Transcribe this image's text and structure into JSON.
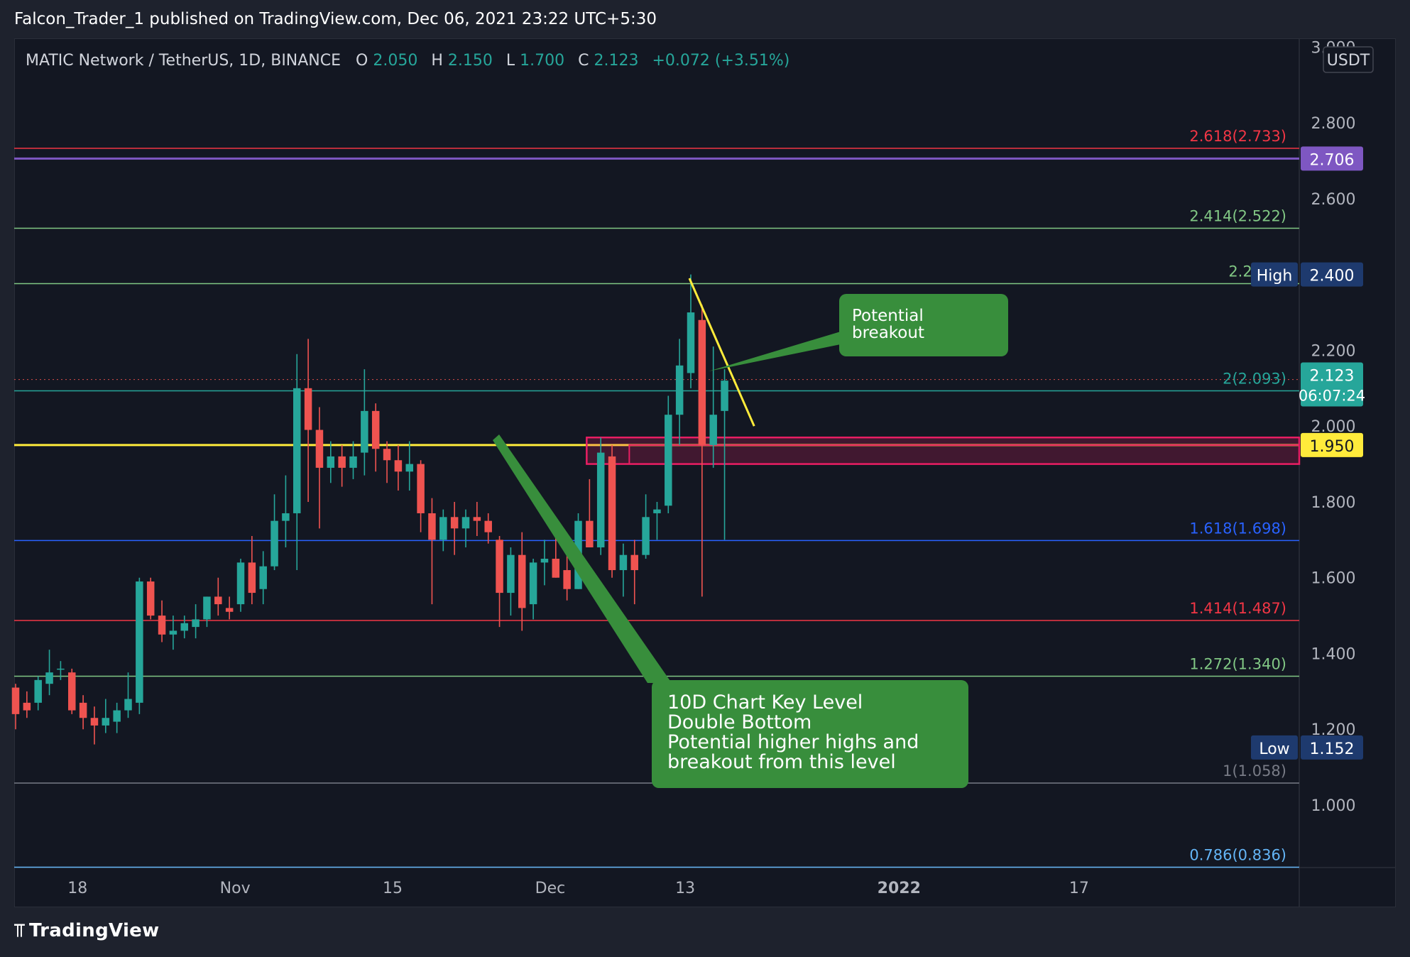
{
  "publisher": {
    "line": "Falcon_Trader_1 published on TradingView.com, Dec 06, 2021 23:22 UTC+5:30"
  },
  "legend": {
    "symbol": "MATIC Network / TetherUS, 1D, BINANCE",
    "o_label": "O",
    "o_value": "2.050",
    "h_label": "H",
    "h_value": "2.150",
    "l_label": "L",
    "l_value": "1.700",
    "c_label": "C",
    "c_value": "2.123",
    "change": "+0.072 (+3.51%)"
  },
  "colors": {
    "background": "#131722",
    "up": "#26a69a",
    "down": "#ef5350",
    "axis_text": "#b2b5be",
    "support_line": "#ffeb3b",
    "purple_line": "#7e57c2",
    "zone": "#e91e63",
    "callout": "#388e3c"
  },
  "chart_data": {
    "type": "candlestick",
    "title": "MATIC Network / TetherUS, 1D, BINANCE",
    "currency": "USDT",
    "ylim": [
      0.8,
      3.0
    ],
    "grid": false,
    "x_ticks": [
      {
        "label": "18",
        "index": 5
      },
      {
        "label": "Nov",
        "index": 19
      },
      {
        "label": "15",
        "index": 33
      },
      {
        "label": "Dec",
        "index": 47
      },
      {
        "label": "13",
        "index": 59
      },
      {
        "label": "2022",
        "index": 78
      },
      {
        "label": "17",
        "index": 94
      }
    ],
    "y_ticks": [
      "3.000",
      "2.800",
      "2.600",
      "2.200",
      "2.000",
      "1.800",
      "1.600",
      "1.400",
      "1.200",
      "1.000"
    ],
    "ohlc": [
      [
        1.31,
        1.32,
        1.2,
        1.24
      ],
      [
        1.27,
        1.3,
        1.23,
        1.25
      ],
      [
        1.27,
        1.34,
        1.25,
        1.33
      ],
      [
        1.32,
        1.41,
        1.29,
        1.35
      ],
      [
        1.36,
        1.38,
        1.33,
        1.36
      ],
      [
        1.35,
        1.36,
        1.24,
        1.25
      ],
      [
        1.27,
        1.29,
        1.2,
        1.23
      ],
      [
        1.23,
        1.26,
        1.16,
        1.21
      ],
      [
        1.21,
        1.28,
        1.19,
        1.23
      ],
      [
        1.22,
        1.27,
        1.19,
        1.25
      ],
      [
        1.25,
        1.35,
        1.23,
        1.28
      ],
      [
        1.27,
        1.6,
        1.24,
        1.59
      ],
      [
        1.59,
        1.6,
        1.49,
        1.5
      ],
      [
        1.5,
        1.54,
        1.43,
        1.45
      ],
      [
        1.45,
        1.5,
        1.41,
        1.46
      ],
      [
        1.46,
        1.5,
        1.44,
        1.48
      ],
      [
        1.47,
        1.53,
        1.44,
        1.49
      ],
      [
        1.49,
        1.55,
        1.47,
        1.55
      ],
      [
        1.55,
        1.6,
        1.5,
        1.53
      ],
      [
        1.52,
        1.55,
        1.49,
        1.51
      ],
      [
        1.53,
        1.65,
        1.51,
        1.64
      ],
      [
        1.64,
        1.71,
        1.53,
        1.56
      ],
      [
        1.57,
        1.67,
        1.53,
        1.63
      ],
      [
        1.63,
        1.82,
        1.62,
        1.75
      ],
      [
        1.75,
        1.87,
        1.68,
        1.77
      ],
      [
        1.77,
        2.19,
        1.62,
        2.1
      ],
      [
        2.1,
        2.23,
        1.8,
        1.99
      ],
      [
        1.99,
        2.05,
        1.73,
        1.89
      ],
      [
        1.89,
        1.96,
        1.85,
        1.92
      ],
      [
        1.92,
        1.95,
        1.84,
        1.89
      ],
      [
        1.89,
        1.96,
        1.86,
        1.92
      ],
      [
        1.93,
        2.15,
        1.87,
        2.04
      ],
      [
        2.04,
        2.06,
        1.88,
        1.94
      ],
      [
        1.94,
        1.96,
        1.85,
        1.91
      ],
      [
        1.91,
        1.95,
        1.83,
        1.88
      ],
      [
        1.88,
        1.96,
        1.83,
        1.9
      ],
      [
        1.9,
        1.91,
        1.72,
        1.77
      ],
      [
        1.77,
        1.81,
        1.53,
        1.7
      ],
      [
        1.7,
        1.78,
        1.67,
        1.76
      ],
      [
        1.76,
        1.8,
        1.66,
        1.73
      ],
      [
        1.73,
        1.78,
        1.68,
        1.76
      ],
      [
        1.76,
        1.8,
        1.71,
        1.75
      ],
      [
        1.75,
        1.77,
        1.69,
        1.72
      ],
      [
        1.7,
        1.71,
        1.47,
        1.56
      ],
      [
        1.56,
        1.68,
        1.5,
        1.66
      ],
      [
        1.66,
        1.72,
        1.46,
        1.52
      ],
      [
        1.53,
        1.65,
        1.49,
        1.64
      ],
      [
        1.64,
        1.7,
        1.58,
        1.65
      ],
      [
        1.65,
        1.71,
        1.6,
        1.6
      ],
      [
        1.62,
        1.68,
        1.54,
        1.57
      ],
      [
        1.57,
        1.77,
        1.57,
        1.75
      ],
      [
        1.75,
        1.86,
        1.68,
        1.68
      ],
      [
        1.68,
        1.97,
        1.66,
        1.93
      ],
      [
        1.92,
        1.95,
        1.6,
        1.62
      ],
      [
        1.62,
        1.69,
        1.55,
        1.66
      ],
      [
        1.66,
        1.7,
        1.53,
        1.62
      ],
      [
        1.66,
        1.82,
        1.65,
        1.76
      ],
      [
        1.77,
        1.8,
        1.7,
        1.78
      ],
      [
        1.79,
        2.08,
        1.77,
        2.03
      ],
      [
        2.03,
        2.23,
        1.95,
        2.16
      ],
      [
        2.14,
        2.4,
        2.1,
        2.3
      ],
      [
        2.28,
        2.32,
        1.55,
        1.95
      ],
      [
        1.95,
        2.21,
        1.89,
        2.03
      ],
      [
        2.04,
        2.15,
        1.7,
        2.12
      ]
    ],
    "fib_levels": [
      {
        "label": "2.618(2.733)",
        "price": 2.733,
        "color": "#f23645"
      },
      {
        "label": "2.414(2.522)",
        "price": 2.522,
        "color": "#81c784"
      },
      {
        "label": "2.272(2",
        "price": 2.376,
        "color": "#81c784"
      },
      {
        "label": "2(2.093)",
        "price": 2.093,
        "color": "#26a69a"
      },
      {
        "label": "1.618(1.698)",
        "price": 1.698,
        "color": "#2962ff"
      },
      {
        "label": "1.414(1.487)",
        "price": 1.487,
        "color": "#f23645"
      },
      {
        "label": "1.272(1.340)",
        "price": 1.34,
        "color": "#81c784"
      },
      {
        "label": "1(1.058)",
        "price": 1.058,
        "color": "#787b86"
      },
      {
        "label": "0.786(0.836)",
        "price": 0.836,
        "color": "#64b5f6"
      }
    ],
    "horizontal_lines": [
      {
        "price": 2.706,
        "color": "#7e57c2"
      },
      {
        "price": 1.95,
        "color": "#ffeb3b"
      }
    ],
    "price_tags": [
      {
        "label": "2.706",
        "price": 2.706,
        "bg": "#7e57c2",
        "fg": "#ffffff"
      },
      {
        "tag": "High",
        "label": "2.400",
        "price": 2.4,
        "bg": "#1e3a6e",
        "fg": "#ffffff"
      },
      {
        "label": "2.123",
        "sub": "06:07:24",
        "price": 2.123,
        "bg": "#26a69a",
        "fg": "#ffffff"
      },
      {
        "label": "1.950",
        "price": 1.95,
        "bg": "#ffeb3b",
        "fg": "#131722"
      },
      {
        "tag": "Low",
        "label": "1.152",
        "price": 1.152,
        "bg": "#1e3a6e",
        "fg": "#ffffff"
      }
    ],
    "last_price": 2.123,
    "zone": {
      "top": 1.97,
      "bottom": 1.9,
      "start_index": 51
    },
    "trendline": {
      "start": [
        60,
        2.39
      ],
      "end": [
        65,
        2.0
      ]
    },
    "callouts": [
      {
        "lines": [
          "Potential",
          "breakout"
        ]
      },
      {
        "lines": [
          "10D Chart Key Level",
          "Double Bottom",
          "Potential higher highs and",
          "breakout from this level"
        ]
      }
    ]
  },
  "footer": {
    "brand": "TradingView"
  }
}
